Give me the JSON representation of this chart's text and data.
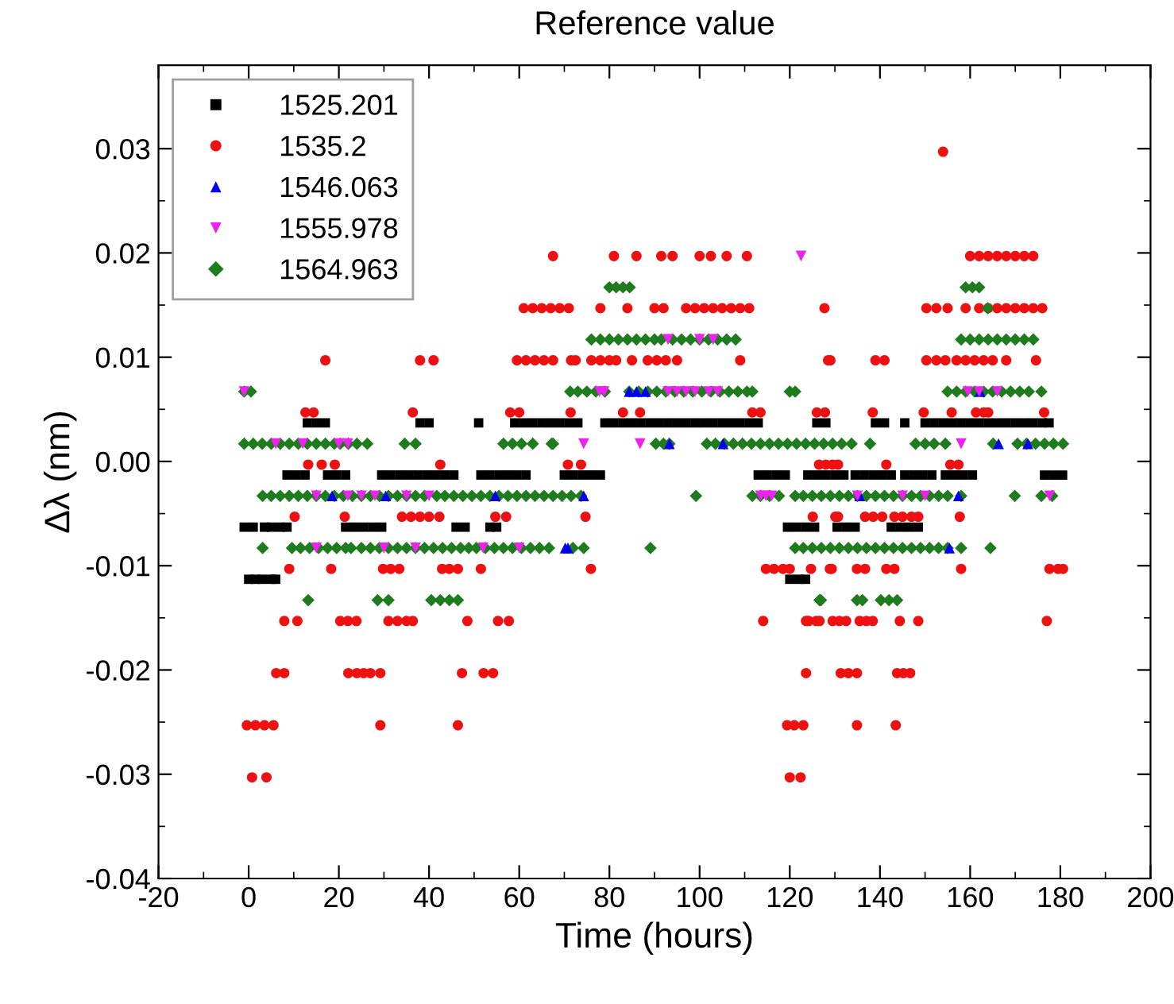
{
  "chart_data": {
    "type": "scatter",
    "title": "Reference value",
    "xlabel": "Time (hours)",
    "ylabel": "Δλ (nm)",
    "xlim": [
      -20,
      200
    ],
    "xticks": [
      -20,
      0,
      20,
      40,
      60,
      80,
      100,
      120,
      140,
      160,
      180,
      200
    ],
    "ylim": [
      -0.04,
      0.038
    ],
    "yticks": [
      -0.04,
      -0.03,
      -0.02,
      -0.01,
      {
        "value": 0,
        "label": "0.00"
      },
      0.01,
      0.02,
      0.03
    ],
    "grid": false,
    "legend": "top left",
    "series": [
      {
        "name": "1525.201",
        "color": "#000000",
        "marker": "square",
        "x": [
          13,
          15,
          17,
          38,
          40,
          51,
          59,
          61,
          63,
          65,
          67,
          69,
          71,
          73,
          79,
          81,
          83,
          85,
          87,
          89,
          91,
          93,
          95,
          97,
          99,
          101,
          103,
          105,
          107,
          109,
          111,
          113,
          126,
          128,
          139,
          141,
          145.5,
          150,
          152,
          154,
          156,
          158,
          160,
          162,
          164,
          166,
          168,
          170,
          172,
          174,
          176,
          177.5,
          8.5,
          10.5,
          12.5,
          17.5,
          19.5,
          21.5,
          29.5,
          31.5,
          33.5,
          35.5,
          37.5,
          39.5,
          41.5,
          43.5,
          45.5,
          51.5,
          53.5,
          55.5,
          57.5,
          59.5,
          61.5,
          70,
          72,
          74,
          76,
          78,
          113,
          115,
          117,
          119,
          124,
          126,
          128,
          130,
          132,
          134.5,
          136.5,
          138.5,
          140.5,
          142.5,
          145.5,
          147.5,
          149.5,
          151.5,
          154.5,
          156.5,
          158.5,
          160.5,
          176.5,
          178.5,
          180.5,
          -1,
          1,
          3.5,
          5,
          7,
          8.5,
          21.5,
          23.5,
          25.5,
          27.5,
          29.5,
          46,
          48,
          53.5,
          55,
          119.5,
          121.5,
          123.5,
          125.5,
          130.5,
          132.5,
          134.5,
          142.5,
          144.5,
          146.5,
          148.5,
          0,
          1.5,
          3,
          5,
          6,
          120,
          122,
          123.5
        ],
        "values": [
          0.0037,
          0.0037,
          0.0037,
          0.0037,
          0.0037,
          0.0037,
          0.0037,
          0.0037,
          0.0037,
          0.0037,
          0.0037,
          0.0037,
          0.0037,
          0.0037,
          0.0037,
          0.0037,
          0.0037,
          0.0037,
          0.0037,
          0.0037,
          0.0037,
          0.0037,
          0.0037,
          0.0037,
          0.0037,
          0.0037,
          0.0037,
          0.0037,
          0.0037,
          0.0037,
          0.0037,
          0.0037,
          0.0037,
          0.0037,
          0.0037,
          0.0037,
          0.0037,
          0.0037,
          0.0037,
          0.0037,
          0.0037,
          0.0037,
          0.0037,
          0.0037,
          0.0037,
          0.0037,
          0.0037,
          0.0037,
          0.0037,
          0.0037,
          0.0037,
          0.0037,
          -0.0013,
          -0.0013,
          -0.0013,
          -0.0013,
          -0.0013,
          -0.0013,
          -0.0013,
          -0.0013,
          -0.0013,
          -0.0013,
          -0.0013,
          -0.0013,
          -0.0013,
          -0.0013,
          -0.0013,
          -0.0013,
          -0.0013,
          -0.0013,
          -0.0013,
          -0.0013,
          -0.0013,
          -0.0013,
          -0.0013,
          -0.0013,
          -0.0013,
          -0.0013,
          -0.0013,
          -0.0013,
          -0.0013,
          -0.0013,
          -0.0013,
          -0.0013,
          -0.0013,
          -0.0013,
          -0.0013,
          -0.0013,
          -0.0013,
          -0.0013,
          -0.0013,
          -0.0013,
          -0.0013,
          -0.0013,
          -0.0013,
          -0.0013,
          -0.0013,
          -0.0013,
          -0.0013,
          -0.0013,
          -0.0013,
          -0.0013,
          -0.0013,
          -0.0063,
          -0.0063,
          -0.0063,
          -0.0063,
          -0.0063,
          -0.0063,
          -0.0063,
          -0.0063,
          -0.0063,
          -0.0063,
          -0.0063,
          -0.0063,
          -0.0063,
          -0.0063,
          -0.0063,
          -0.0063,
          -0.0063,
          -0.0063,
          -0.0063,
          -0.0063,
          -0.0063,
          -0.0063,
          -0.0063,
          -0.0063,
          -0.0063,
          -0.0063,
          -0.0113,
          -0.0113,
          -0.0113,
          -0.0113,
          -0.0113,
          -0.0113,
          -0.0113,
          -0.0113
        ]
      },
      {
        "name": "1535.2",
        "color": "#ee1111",
        "marker": "circle",
        "x": [
          154,
          67.5,
          81,
          86,
          91.5,
          94,
          100,
          102.5,
          106,
          110.5,
          160,
          162,
          164,
          166,
          168,
          170,
          172,
          174,
          61,
          63,
          65,
          67,
          69,
          71,
          78,
          84,
          90,
          92,
          97,
          99,
          101,
          103,
          105,
          107,
          109,
          111,
          127.7,
          150.3,
          152.5,
          155,
          159,
          162,
          164,
          166,
          168,
          170,
          172,
          174,
          176,
          17,
          38,
          41,
          59.5,
          61.5,
          63.5,
          65.5,
          67.5,
          71.5,
          72.5,
          76,
          78,
          80,
          81.5,
          85,
          88.5,
          90.5,
          92.5,
          95,
          109,
          128.5,
          129,
          139,
          141,
          150.3,
          152.5,
          154.5,
          157,
          159,
          161,
          163,
          165,
          168,
          174.6,
          12.6,
          14.4,
          36.4,
          58,
          60,
          71.4,
          83,
          86.8,
          111.7,
          113.5,
          126,
          127.8,
          138.4,
          149.7,
          155.9,
          161.3,
          163,
          164,
          176.4,
          13.2,
          16.2,
          19.1,
          42.5,
          70.8,
          73.7,
          126.5,
          128,
          129.5,
          130.7,
          141.4,
          155.6,
          157.4,
          10.2,
          21.3,
          34,
          36,
          38,
          40,
          42.3,
          54.7,
          57.1,
          74.7,
          125.1,
          130.1,
          130.7,
          136.7,
          138.5,
          140.5,
          143.2,
          145,
          147,
          148.5,
          157.7,
          9,
          18.3,
          29.8,
          31.5,
          33.4,
          42.9,
          44.5,
          46.4,
          51.5,
          75.9,
          114.7,
          116.5,
          118.5,
          120,
          124.7,
          128.9,
          129.3,
          134.9,
          136.7,
          141.4,
          143.2,
          158,
          177.6,
          179.5,
          180.6,
          7.9,
          10.8,
          20.3,
          22,
          23.9,
          31,
          33,
          35,
          36.4,
          48.5,
          55.3,
          57.7,
          114.1,
          123.6,
          124.2,
          125.9,
          126.6,
          129.5,
          131,
          132.5,
          135.5,
          137,
          138.4,
          144.4,
          148.5,
          177,
          6.1,
          7.9,
          22.1,
          24,
          25.5,
          27,
          29.2,
          47.3,
          52.1,
          54.2,
          123.6,
          131.3,
          133,
          134.9,
          143.8,
          145.2,
          146.7,
          -0.4,
          1.5,
          3.5,
          5.5,
          29.2,
          46.4,
          119.4,
          121,
          123,
          134.9,
          143.5,
          0.75,
          3.95,
          120,
          122.4
        ],
        "values": [
          0.0297,
          0.0197,
          0.0197,
          0.0197,
          0.0197,
          0.0197,
          0.0197,
          0.0197,
          0.0197,
          0.0197,
          0.0197,
          0.0197,
          0.0197,
          0.0197,
          0.0197,
          0.0197,
          0.0197,
          0.0197,
          0.0147,
          0.0147,
          0.0147,
          0.0147,
          0.0147,
          0.0147,
          0.0147,
          0.0147,
          0.0147,
          0.0147,
          0.0147,
          0.0147,
          0.0147,
          0.0147,
          0.0147,
          0.0147,
          0.0147,
          0.0147,
          0.0147,
          0.0147,
          0.0147,
          0.0147,
          0.0147,
          0.0147,
          0.0147,
          0.0147,
          0.0147,
          0.0147,
          0.0147,
          0.0147,
          0.0147,
          0.0097,
          0.0097,
          0.0097,
          0.0097,
          0.0097,
          0.0097,
          0.0097,
          0.0097,
          0.0097,
          0.0097,
          0.0097,
          0.0097,
          0.0097,
          0.0097,
          0.0097,
          0.0097,
          0.0097,
          0.0097,
          0.0097,
          0.0097,
          0.0097,
          0.0097,
          0.0097,
          0.0097,
          0.0097,
          0.0097,
          0.0097,
          0.0097,
          0.0097,
          0.0097,
          0.0097,
          0.0097,
          0.0097,
          0.0097,
          0.0047,
          0.0047,
          0.0047,
          0.0047,
          0.0047,
          0.0047,
          0.0047,
          0.0047,
          0.0047,
          0.0047,
          0.0047,
          0.0047,
          0.0047,
          0.0047,
          0.0047,
          0.0047,
          0.0047,
          0.0047,
          0.0047,
          -0.0003,
          -0.0003,
          -0.0003,
          -0.0003,
          -0.0003,
          -0.0003,
          -0.0003,
          -0.0003,
          -0.0003,
          -0.0003,
          -0.0003,
          -0.0003,
          -0.0003,
          -0.0053,
          -0.0053,
          -0.0053,
          -0.0053,
          -0.0053,
          -0.0053,
          -0.0053,
          -0.0053,
          -0.0053,
          -0.0053,
          -0.0053,
          -0.0053,
          -0.0053,
          -0.0053,
          -0.0053,
          -0.0053,
          -0.0053,
          -0.0053,
          -0.0053,
          -0.0053,
          -0.0053,
          -0.0103,
          -0.0103,
          -0.0103,
          -0.0103,
          -0.0103,
          -0.0103,
          -0.0103,
          -0.0103,
          -0.0103,
          -0.0103,
          -0.0103,
          -0.0103,
          -0.0103,
          -0.0103,
          -0.0103,
          -0.0103,
          -0.0103,
          -0.0103,
          -0.0103,
          -0.0103,
          -0.0103,
          -0.0103,
          -0.0103,
          -0.0103,
          -0.0103,
          -0.0153,
          -0.0153,
          -0.0153,
          -0.0153,
          -0.0153,
          -0.0153,
          -0.0153,
          -0.0153,
          -0.0153,
          -0.0153,
          -0.0153,
          -0.0153,
          -0.0153,
          -0.0153,
          -0.0153,
          -0.0153,
          -0.0153,
          -0.0153,
          -0.0153,
          -0.0153,
          -0.0153,
          -0.0153,
          -0.0153,
          -0.0153,
          -0.0153,
          -0.0153,
          -0.0203,
          -0.0203,
          -0.0203,
          -0.0203,
          -0.0203,
          -0.0203,
          -0.0203,
          -0.0203,
          -0.0203,
          -0.0203,
          -0.0203,
          -0.0203,
          -0.0203,
          -0.0203,
          -0.0203,
          -0.0203,
          -0.0203,
          -0.0253,
          -0.0253,
          -0.0253,
          -0.0253,
          -0.0253,
          -0.0253,
          -0.0253,
          -0.0253,
          -0.0253,
          -0.0253,
          -0.0253,
          -0.0303,
          -0.0303,
          -0.0303,
          -0.0303
        ]
      },
      {
        "name": "1546.063",
        "color": "#0000ee",
        "marker": "triangle",
        "x": [
          18.5,
          30.4,
          54.7,
          74.3,
          135.5,
          157.4,
          70.2,
          70.8,
          155.4,
          84.4,
          86,
          88,
          162.2,
          93.3,
          105.2,
          166.3,
          172.8
        ],
        "values": [
          -0.0033,
          -0.0033,
          -0.0033,
          -0.0033,
          -0.0033,
          -0.0033,
          -0.0083,
          -0.0083,
          -0.0083,
          0.0067,
          0.0067,
          0.0067,
          0.0067,
          0.0017,
          0.0017,
          0.0017,
          0.0017
        ]
      },
      {
        "name": "1555.978",
        "color": "#ee22ee",
        "marker": "triangle_down",
        "x": [
          -1,
          77.8,
          78.8,
          93,
          95,
          97,
          99,
          102,
          104,
          159.5,
          162,
          166,
          93,
          100,
          103,
          122.5,
          6,
          12,
          20,
          22,
          74.3,
          86.8,
          158,
          15,
          22,
          25,
          28,
          35,
          40,
          113.5,
          114.7,
          116,
          135,
          145,
          150,
          177.6,
          15,
          30,
          37,
          52,
          60
        ],
        "values": [
          0.0067,
          0.0067,
          0.0067,
          0.0067,
          0.0067,
          0.0067,
          0.0067,
          0.0067,
          0.0067,
          0.0067,
          0.0067,
          0.0067,
          0.0117,
          0.0117,
          0.0117,
          0.0197,
          0.0017,
          0.0017,
          0.0017,
          0.0017,
          0.0017,
          0.0017,
          0.0017,
          -0.0033,
          -0.0033,
          -0.0033,
          -0.0033,
          -0.0033,
          -0.0033,
          -0.0033,
          -0.0033,
          -0.0033,
          -0.0033,
          -0.0033,
          -0.0033,
          -0.0033,
          -0.0083,
          -0.0083,
          -0.0083,
          -0.0083,
          -0.0083
        ]
      },
      {
        "name": "1564.963",
        "color": "#1e7b1e",
        "marker": "diamond",
        "x": [
          80,
          81.5,
          83,
          84.5,
          159,
          160.5,
          162,
          163.9,
          76,
          78,
          80,
          82,
          84,
          86,
          88,
          90,
          91.5,
          94,
          96,
          98,
          100,
          102,
          104,
          106,
          108,
          158,
          160,
          162,
          164,
          166,
          168,
          170,
          172,
          174,
          -1,
          0.5,
          71.3,
          73,
          75,
          77,
          79,
          84.4,
          86.5,
          88.5,
          90.5,
          92.5,
          94.5,
          96.5,
          98.5,
          100.5,
          102.5,
          104.5,
          106.5,
          108.5,
          110.5,
          111.7,
          120,
          121.2,
          155,
          157,
          159,
          161,
          163,
          165,
          167,
          169,
          171,
          173,
          175.8,
          -1,
          1,
          3,
          5,
          7,
          9,
          11,
          13,
          15,
          17,
          19,
          20.3,
          22.1,
          24,
          26.3,
          34.6,
          37,
          56.5,
          58.5,
          60.5,
          63,
          67.2,
          67.5,
          90.3,
          92,
          93.3,
          101.6,
          103.5,
          105.5,
          107.5,
          109.5,
          111.5,
          113.5,
          115.5,
          117.5,
          119.5,
          121.5,
          123.5,
          125.5,
          127.5,
          129.5,
          131.5,
          133.7,
          137.8,
          147.9,
          150,
          152,
          154.5,
          165.1,
          170.5,
          172.5,
          174.5,
          176.5,
          178.5,
          180.6,
          3.1,
          5,
          7,
          9,
          11,
          13,
          15,
          17,
          19,
          21,
          23,
          25,
          27,
          29,
          31,
          33,
          35,
          37,
          39,
          41.7,
          43.5,
          45.5,
          47.5,
          49.5,
          51.5,
          53.5,
          55.5,
          57.5,
          59.5,
          61.5,
          63.5,
          65.5,
          67.5,
          69.5,
          71.5,
          73.7,
          99.2,
          111.7,
          113.5,
          115.5,
          117.6,
          121.2,
          123,
          125,
          127,
          129,
          131,
          133,
          135,
          137,
          139,
          141,
          143,
          145,
          147,
          149,
          151,
          153,
          155,
          158,
          169.9,
          175.8,
          178.2,
          3.1,
          9.6,
          11.5,
          13.5,
          15.5,
          17.5,
          19.5,
          21.5,
          22.7,
          25,
          27,
          29,
          31,
          33,
          35,
          37,
          39,
          41,
          43,
          45,
          47,
          48.8,
          50.5,
          52.5,
          54.5,
          56.5,
          58.5,
          60.5,
          62.5,
          64.5,
          66.6,
          71.9,
          74.3,
          89.1,
          121.2,
          123,
          125,
          127,
          129,
          131,
          133,
          135,
          137,
          139,
          141,
          143,
          145,
          147,
          149,
          151,
          153,
          155,
          158,
          164.5,
          13.2,
          28.6,
          31,
          40.5,
          42.5,
          44.5,
          46.4,
          126.9,
          126.6,
          134.9,
          136.1,
          140.2,
          142,
          143.8
        ],
        "values": [
          0.0167,
          0.0167,
          0.0167,
          0.0167,
          0.0167,
          0.0167,
          0.0167,
          0.0147,
          0.0117,
          0.0117,
          0.0117,
          0.0117,
          0.0117,
          0.0117,
          0.0117,
          0.0117,
          0.0117,
          0.0117,
          0.0117,
          0.0117,
          0.0117,
          0.0117,
          0.0117,
          0.0117,
          0.0117,
          0.0117,
          0.0117,
          0.0117,
          0.0117,
          0.0117,
          0.0117,
          0.0117,
          0.0117,
          0.0117,
          0.0067,
          0.0067,
          0.0067,
          0.0067,
          0.0067,
          0.0067,
          0.0067,
          0.0067,
          0.0067,
          0.0067,
          0.0067,
          0.0067,
          0.0067,
          0.0067,
          0.0067,
          0.0067,
          0.0067,
          0.0067,
          0.0067,
          0.0067,
          0.0067,
          0.0067,
          0.0067,
          0.0067,
          0.0067,
          0.0067,
          0.0067,
          0.0067,
          0.0067,
          0.0067,
          0.0067,
          0.0067,
          0.0067,
          0.0067,
          0.0067,
          0.0017,
          0.0017,
          0.0017,
          0.0017,
          0.0017,
          0.0017,
          0.0017,
          0.0017,
          0.0017,
          0.0017,
          0.0017,
          0.0017,
          0.0017,
          0.0017,
          0.0017,
          0.0017,
          0.0017,
          0.0017,
          0.0017,
          0.0017,
          0.0017,
          0.0017,
          0.0017,
          0.0017,
          0.0017,
          0.0017,
          0.0017,
          0.0017,
          0.0017,
          0.0017,
          0.0017,
          0.0017,
          0.0017,
          0.0017,
          0.0017,
          0.0017,
          0.0017,
          0.0017,
          0.0017,
          0.0017,
          0.0017,
          0.0017,
          0.0017,
          0.0017,
          0.0017,
          0.0017,
          0.0017,
          0.0017,
          0.0017,
          0.0017,
          0.0017,
          0.0017,
          0.0017,
          0.0017,
          0.0017,
          -0.0033,
          -0.0033,
          -0.0033,
          -0.0033,
          -0.0033,
          -0.0033,
          -0.0033,
          -0.0033,
          -0.0033,
          -0.0033,
          -0.0033,
          -0.0033,
          -0.0033,
          -0.0033,
          -0.0033,
          -0.0033,
          -0.0033,
          -0.0033,
          -0.0033,
          -0.0033,
          -0.0033,
          -0.0033,
          -0.0033,
          -0.0033,
          -0.0033,
          -0.0033,
          -0.0033,
          -0.0033,
          -0.0033,
          -0.0033,
          -0.0033,
          -0.0033,
          -0.0033,
          -0.0033,
          -0.0033,
          -0.0033,
          -0.0033,
          -0.0033,
          -0.0033,
          -0.0033,
          -0.0033,
          -0.0033,
          -0.0033,
          -0.0033,
          -0.0033,
          -0.0033,
          -0.0033,
          -0.0033,
          -0.0033,
          -0.0033,
          -0.0033,
          -0.0033,
          -0.0033,
          -0.0033,
          -0.0033,
          -0.0033,
          -0.0033,
          -0.0033,
          -0.0033,
          -0.0033,
          -0.0033,
          -0.0033,
          -0.0033,
          -0.0083,
          -0.0083,
          -0.0083,
          -0.0083,
          -0.0083,
          -0.0083,
          -0.0083,
          -0.0083,
          -0.0083,
          -0.0083,
          -0.0083,
          -0.0083,
          -0.0083,
          -0.0083,
          -0.0083,
          -0.0083,
          -0.0083,
          -0.0083,
          -0.0083,
          -0.0083,
          -0.0083,
          -0.0083,
          -0.0083,
          -0.0083,
          -0.0083,
          -0.0083,
          -0.0083,
          -0.0083,
          -0.0083,
          -0.0083,
          -0.0083,
          -0.0083,
          -0.0083,
          -0.0083,
          -0.0083,
          -0.0083,
          -0.0083,
          -0.0083,
          -0.0083,
          -0.0083,
          -0.0083,
          -0.0083,
          -0.0083,
          -0.0083,
          -0.0083,
          -0.0083,
          -0.0083,
          -0.0083,
          -0.0083,
          -0.0083,
          -0.0083,
          -0.0083,
          -0.0083,
          -0.0083,
          -0.0133,
          -0.0133,
          -0.0133,
          -0.0133,
          -0.0133,
          -0.0133,
          -0.0133,
          -0.0133,
          -0.0133,
          -0.0133,
          -0.0133,
          -0.0133,
          -0.0133,
          -0.0133
        ]
      }
    ]
  }
}
